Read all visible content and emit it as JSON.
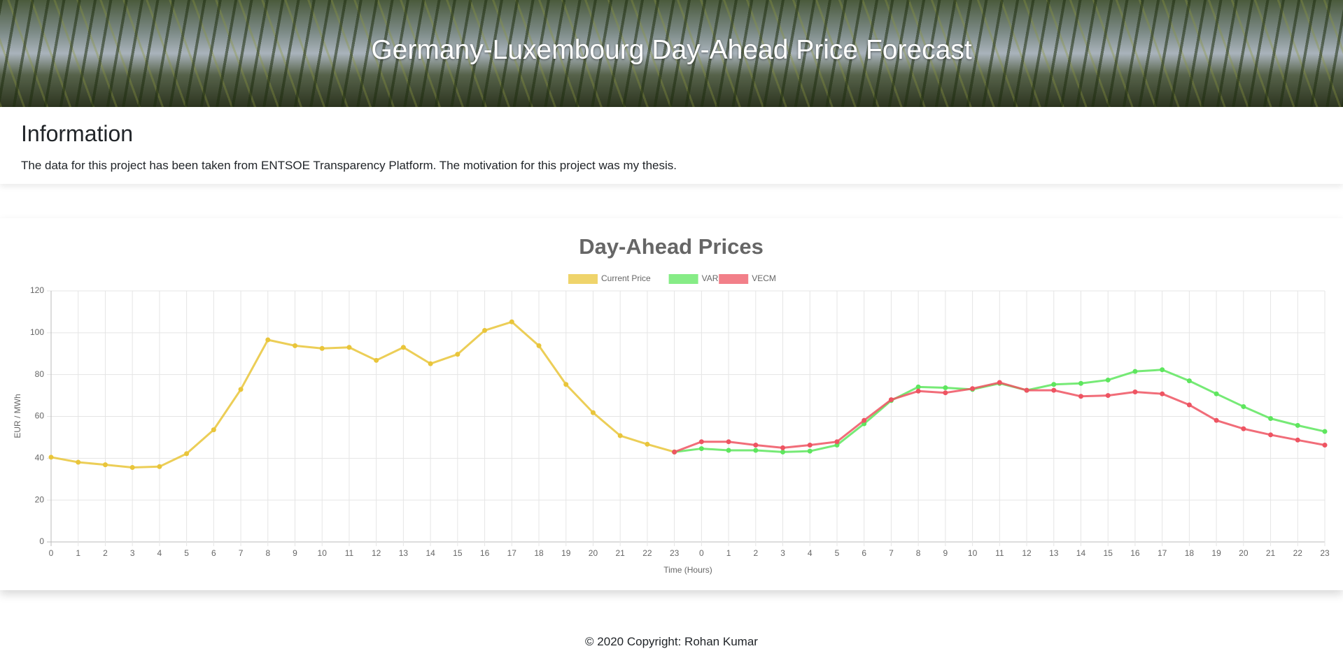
{
  "header": {
    "title": "Germany-Luxembourg Day-Ahead Price Forecast"
  },
  "info": {
    "heading": "Information",
    "text": "The data for this project has been taken from ENTSOE Transparency Platform. The motivation for this project was my thesis."
  },
  "chart_data": {
    "type": "line",
    "title": "Day-Ahead Prices",
    "xlabel": "Time (Hours)",
    "ylabel": "EUR / MWh",
    "categories": [
      0,
      1,
      2,
      3,
      4,
      5,
      6,
      7,
      8,
      9,
      10,
      11,
      12,
      13,
      14,
      15,
      16,
      17,
      18,
      19,
      20,
      21,
      22,
      23,
      0,
      1,
      2,
      3,
      4,
      5,
      6,
      7,
      8,
      9,
      10,
      11,
      12,
      13,
      14,
      15,
      16,
      17,
      18,
      19,
      20,
      21,
      22,
      23
    ],
    "series": [
      {
        "name": "Current Price",
        "color": "#e9c53a",
        "values": [
          40.5,
          38.1,
          36.9,
          35.6,
          36.0,
          42.2,
          53.6,
          72.9,
          96.6,
          93.8,
          92.5,
          93.0,
          86.8,
          93.0,
          85.2,
          89.7,
          101.1,
          105.2,
          93.8,
          75.3,
          61.8,
          50.8,
          46.7,
          43.0,
          null,
          null,
          null,
          null,
          null,
          null,
          null,
          null,
          null,
          null,
          null,
          null,
          null,
          null,
          null,
          null,
          null,
          null,
          null,
          null,
          null,
          null,
          null,
          null
        ]
      },
      {
        "name": "VAR",
        "color": "#5ee65e",
        "values": [
          null,
          null,
          null,
          null,
          null,
          null,
          null,
          null,
          null,
          null,
          null,
          null,
          null,
          null,
          null,
          null,
          null,
          null,
          null,
          null,
          null,
          null,
          null,
          43.0,
          44.6,
          43.8,
          43.8,
          43.0,
          43.4,
          46.3,
          56.5,
          67.6,
          74.1,
          73.7,
          72.9,
          75.8,
          72.5,
          75.3,
          75.8,
          77.4,
          81.5,
          82.3,
          77.0,
          70.8,
          64.7,
          59.0,
          55.7,
          52.8
        ]
      },
      {
        "name": "VECM",
        "color": "#ee5462",
        "values": [
          null,
          null,
          null,
          null,
          null,
          null,
          null,
          null,
          null,
          null,
          null,
          null,
          null,
          null,
          null,
          null,
          null,
          null,
          null,
          null,
          null,
          null,
          null,
          43.0,
          47.9,
          47.9,
          46.3,
          45.0,
          46.3,
          47.9,
          58.1,
          68.0,
          72.1,
          71.3,
          73.3,
          76.2,
          72.5,
          72.5,
          69.6,
          70.0,
          71.7,
          70.8,
          65.5,
          58.1,
          54.1,
          51.2,
          48.7,
          46.3
        ]
      }
    ],
    "ylim": [
      0,
      120
    ],
    "yticks": [
      0,
      20,
      40,
      60,
      80,
      100,
      120
    ],
    "grid": true,
    "legend": "top"
  },
  "footer": {
    "text": "© 2020 Copyright: Rohan Kumar"
  }
}
